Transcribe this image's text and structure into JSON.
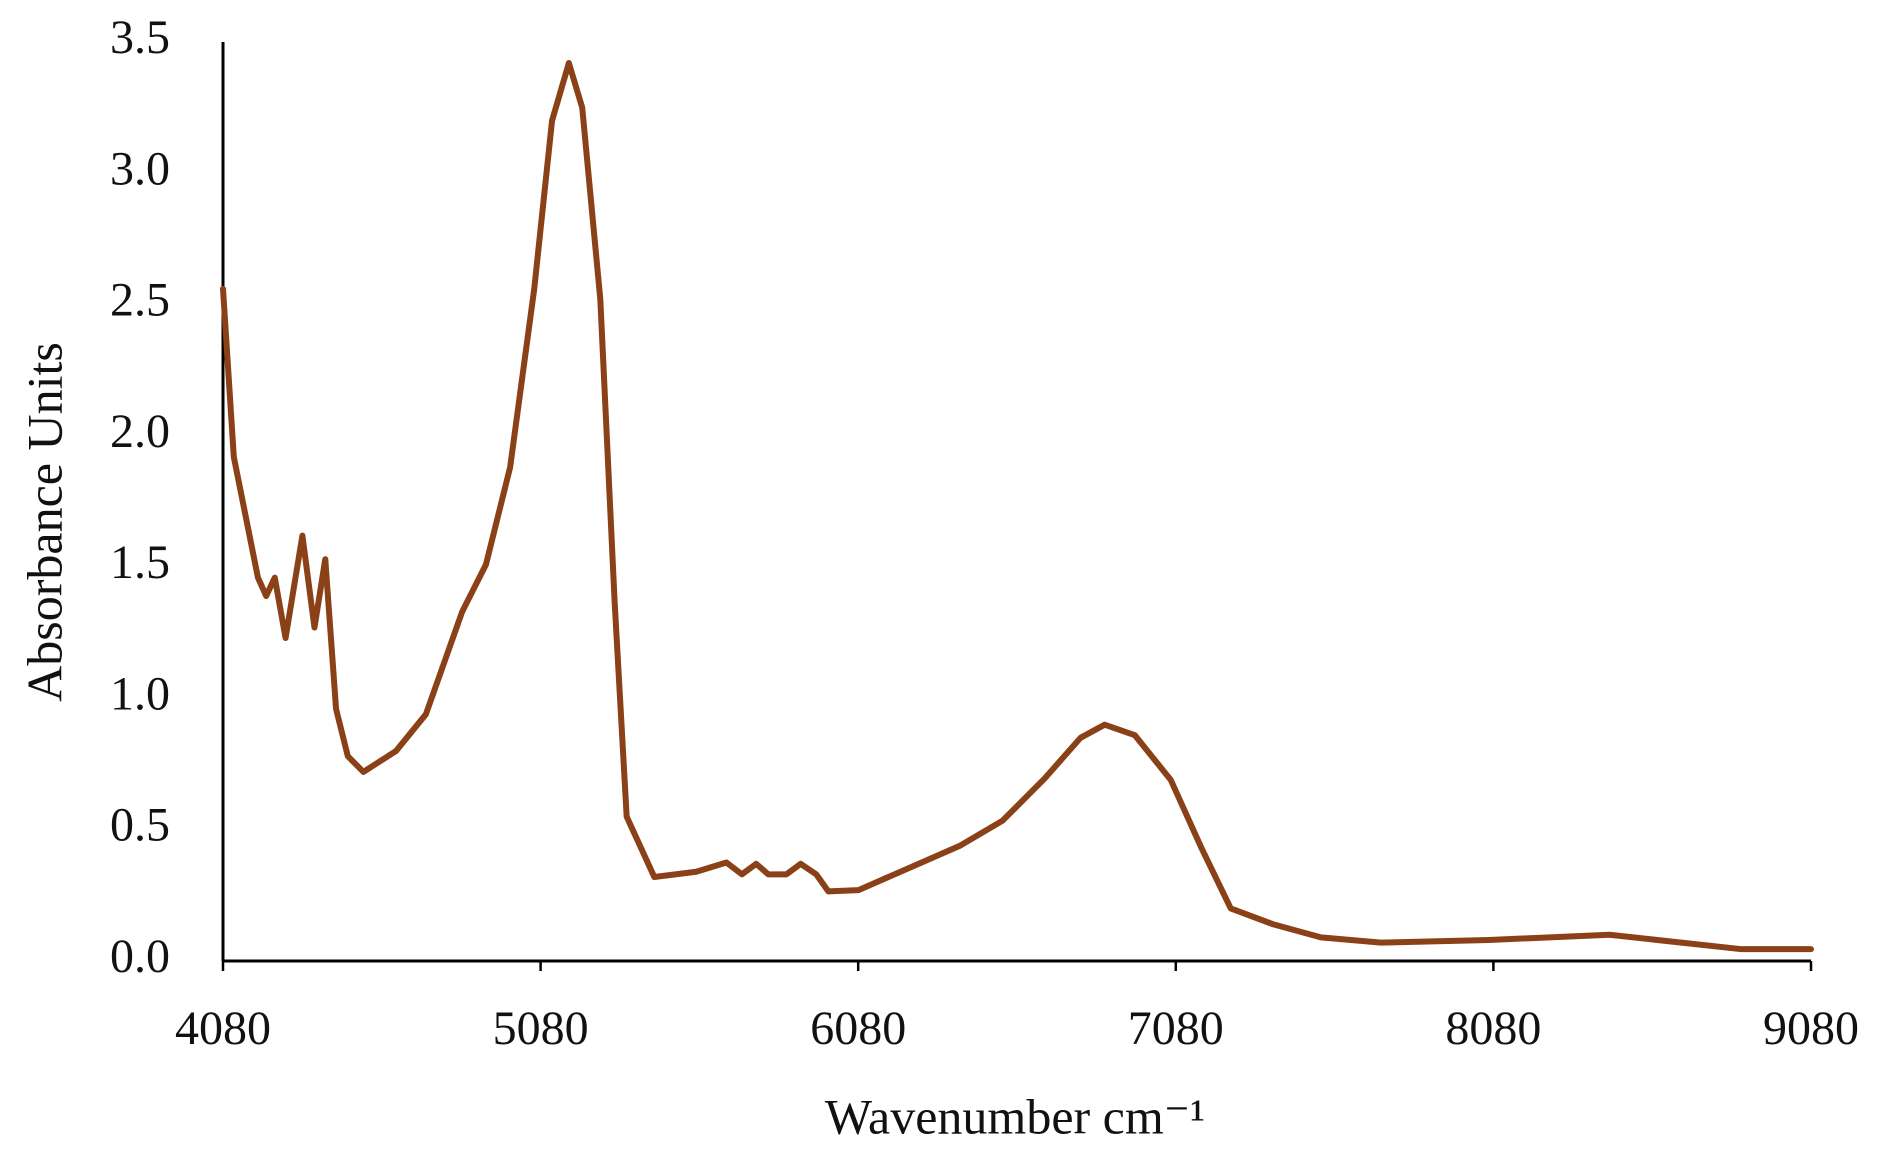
{
  "chart_data": {
    "type": "line",
    "x_label": "Wavenumber cm⁻¹",
    "y_label": "Absorbance Units",
    "xlim": [
      4080,
      9080
    ],
    "xticks": [
      4080,
      5080,
      6080,
      7080,
      8080,
      9080
    ],
    "ylim": [
      0,
      3.5
    ],
    "yticks": [
      {
        "value": 0,
        "label": "0.0"
      },
      0.5,
      {
        "value": 1,
        "label": "1.0"
      },
      1.5,
      {
        "value": 2,
        "label": "2.0"
      },
      2.5,
      {
        "value": 3,
        "label": "3.0"
      },
      3.5
    ],
    "grid": false,
    "series": [
      {
        "color": "#8a4117",
        "x": [
          4080,
          4114,
          4152,
          4190,
          4216,
          4243,
          4277,
          4330,
          4368,
          4402,
          4436,
          4473,
          4522,
          4625,
          4719,
          4833,
          4908,
          4984,
          5060,
          5116,
          5169,
          5211,
          5268,
          5313,
          5351,
          5438,
          5570,
          5665,
          5714,
          5759,
          5797,
          5854,
          5899,
          5948,
          5986,
          6081,
          6251,
          6402,
          6535,
          6667,
          6780,
          6856,
          6951,
          7064,
          7159,
          7253,
          7386,
          7537,
          7726,
          8066,
          8445,
          8672,
          8861,
          9080
        ],
        "values": [
          2.56,
          1.92,
          1.69,
          1.46,
          1.39,
          1.46,
          1.23,
          1.62,
          1.27,
          1.53,
          0.96,
          0.78,
          0.72,
          0.8,
          0.94,
          1.33,
          1.51,
          1.88,
          2.56,
          3.2,
          3.42,
          3.25,
          2.52,
          1.37,
          0.55,
          0.32,
          0.34,
          0.375,
          0.33,
          0.37,
          0.33,
          0.33,
          0.37,
          0.33,
          0.265,
          0.27,
          0.36,
          0.44,
          0.535,
          0.695,
          0.85,
          0.9,
          0.86,
          0.69,
          0.435,
          0.2,
          0.14,
          0.09,
          0.07,
          0.08,
          0.1,
          0.07,
          0.045,
          0.045
        ]
      }
    ]
  }
}
